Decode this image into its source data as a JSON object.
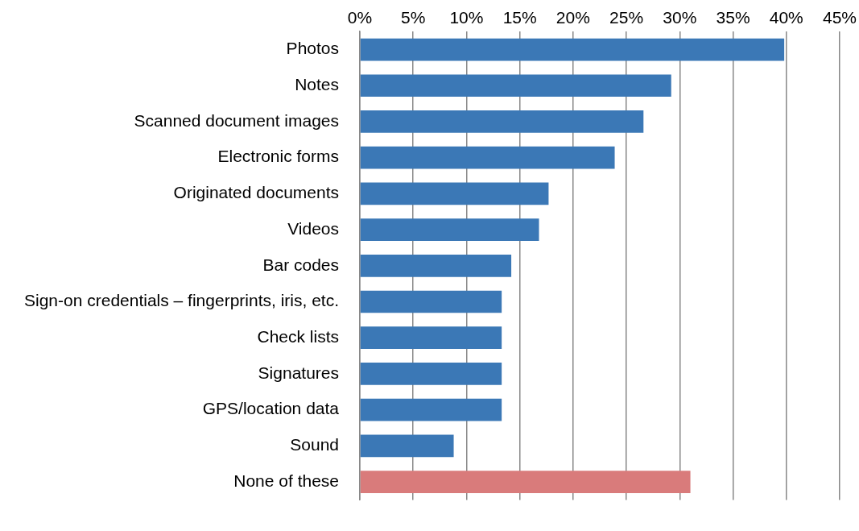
{
  "chart_data": {
    "type": "bar",
    "orientation": "horizontal",
    "categories": [
      "Photos",
      "Notes",
      "Scanned document images",
      "Electronic forms",
      "Originated documents",
      "Videos",
      "Bar codes",
      "Sign-on credentials – fingerprints, iris, etc.",
      "Check lists",
      "Signatures",
      "GPS/location data",
      "Sound",
      "None of these"
    ],
    "values": [
      39.8,
      29.2,
      26.6,
      23.9,
      17.7,
      16.8,
      14.2,
      13.3,
      13.3,
      13.3,
      13.3,
      8.8,
      31.0
    ],
    "colors": [
      "#3b78b6",
      "#3b78b6",
      "#3b78b6",
      "#3b78b6",
      "#3b78b6",
      "#3b78b6",
      "#3b78b6",
      "#3b78b6",
      "#3b78b6",
      "#3b78b6",
      "#3b78b6",
      "#3b78b6",
      "#d97b7b"
    ],
    "xlim": [
      0,
      45
    ],
    "xticks": [
      {
        "value": 0,
        "label": "0%"
      },
      {
        "value": 5,
        "label": "5%"
      },
      {
        "value": 10,
        "label": "10%"
      },
      {
        "value": 15,
        "label": "15%"
      },
      {
        "value": 20,
        "label": "20%"
      },
      {
        "value": 25,
        "label": "25%"
      },
      {
        "value": 30,
        "label": "30%"
      },
      {
        "value": 35,
        "label": "35%"
      },
      {
        "value": 40,
        "label": "40%"
      },
      {
        "value": 45,
        "label": "45%"
      }
    ],
    "grid": "x",
    "legend": false
  }
}
